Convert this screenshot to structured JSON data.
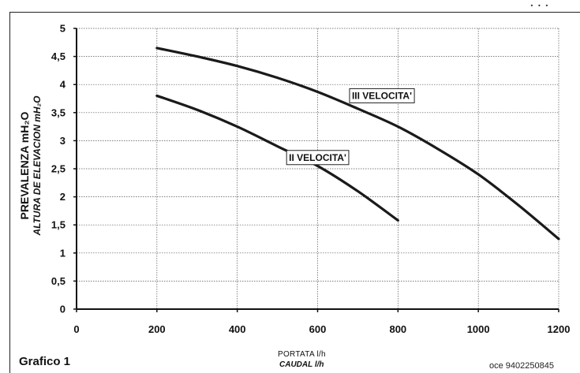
{
  "page": {
    "top_fragment": "· · ·",
    "caption": "Grafico 1",
    "doc_code": "oce 9402250845"
  },
  "chart_data": {
    "type": "line",
    "xlabel_main": "PORTATA l/h",
    "xlabel_sub": "CAUDAL  l/h",
    "ylabel_main": "PREVALENZA mH₂O",
    "ylabel_sub": "ALTURA DE ELEVACION mH₂O",
    "xlim": [
      0,
      1200
    ],
    "ylim": [
      0,
      5
    ],
    "x_ticks": [
      0,
      200,
      400,
      600,
      800,
      1000,
      1200
    ],
    "x_tick_labels": [
      "0",
      "200",
      "400",
      "600",
      "800",
      "1000",
      "1200"
    ],
    "y_ticks": [
      0,
      0.5,
      1,
      1.5,
      2,
      2.5,
      3,
      3.5,
      4,
      4.5,
      5
    ],
    "y_tick_labels": [
      "0",
      "0,5",
      "1",
      "1,5",
      "2",
      "2,5",
      "3",
      "3,5",
      "4",
      "4,5",
      "5"
    ],
    "grid": true,
    "series": [
      {
        "name": "II VELOCITA'",
        "color": "#1a1a1a",
        "points": [
          [
            200,
            3.8
          ],
          [
            300,
            3.55
          ],
          [
            400,
            3.25
          ],
          [
            500,
            2.9
          ],
          [
            600,
            2.55
          ],
          [
            700,
            2.1
          ],
          [
            800,
            1.58
          ]
        ],
        "label_at": [
          600,
          2.7
        ]
      },
      {
        "name": "III VELOCITA'",
        "color": "#1a1a1a",
        "points": [
          [
            200,
            4.65
          ],
          [
            300,
            4.5
          ],
          [
            400,
            4.33
          ],
          [
            500,
            4.12
          ],
          [
            600,
            3.87
          ],
          [
            700,
            3.57
          ],
          [
            800,
            3.25
          ],
          [
            900,
            2.85
          ],
          [
            1000,
            2.4
          ],
          [
            1100,
            1.85
          ],
          [
            1200,
            1.25
          ]
        ],
        "label_at": [
          760,
          3.8
        ]
      }
    ]
  }
}
